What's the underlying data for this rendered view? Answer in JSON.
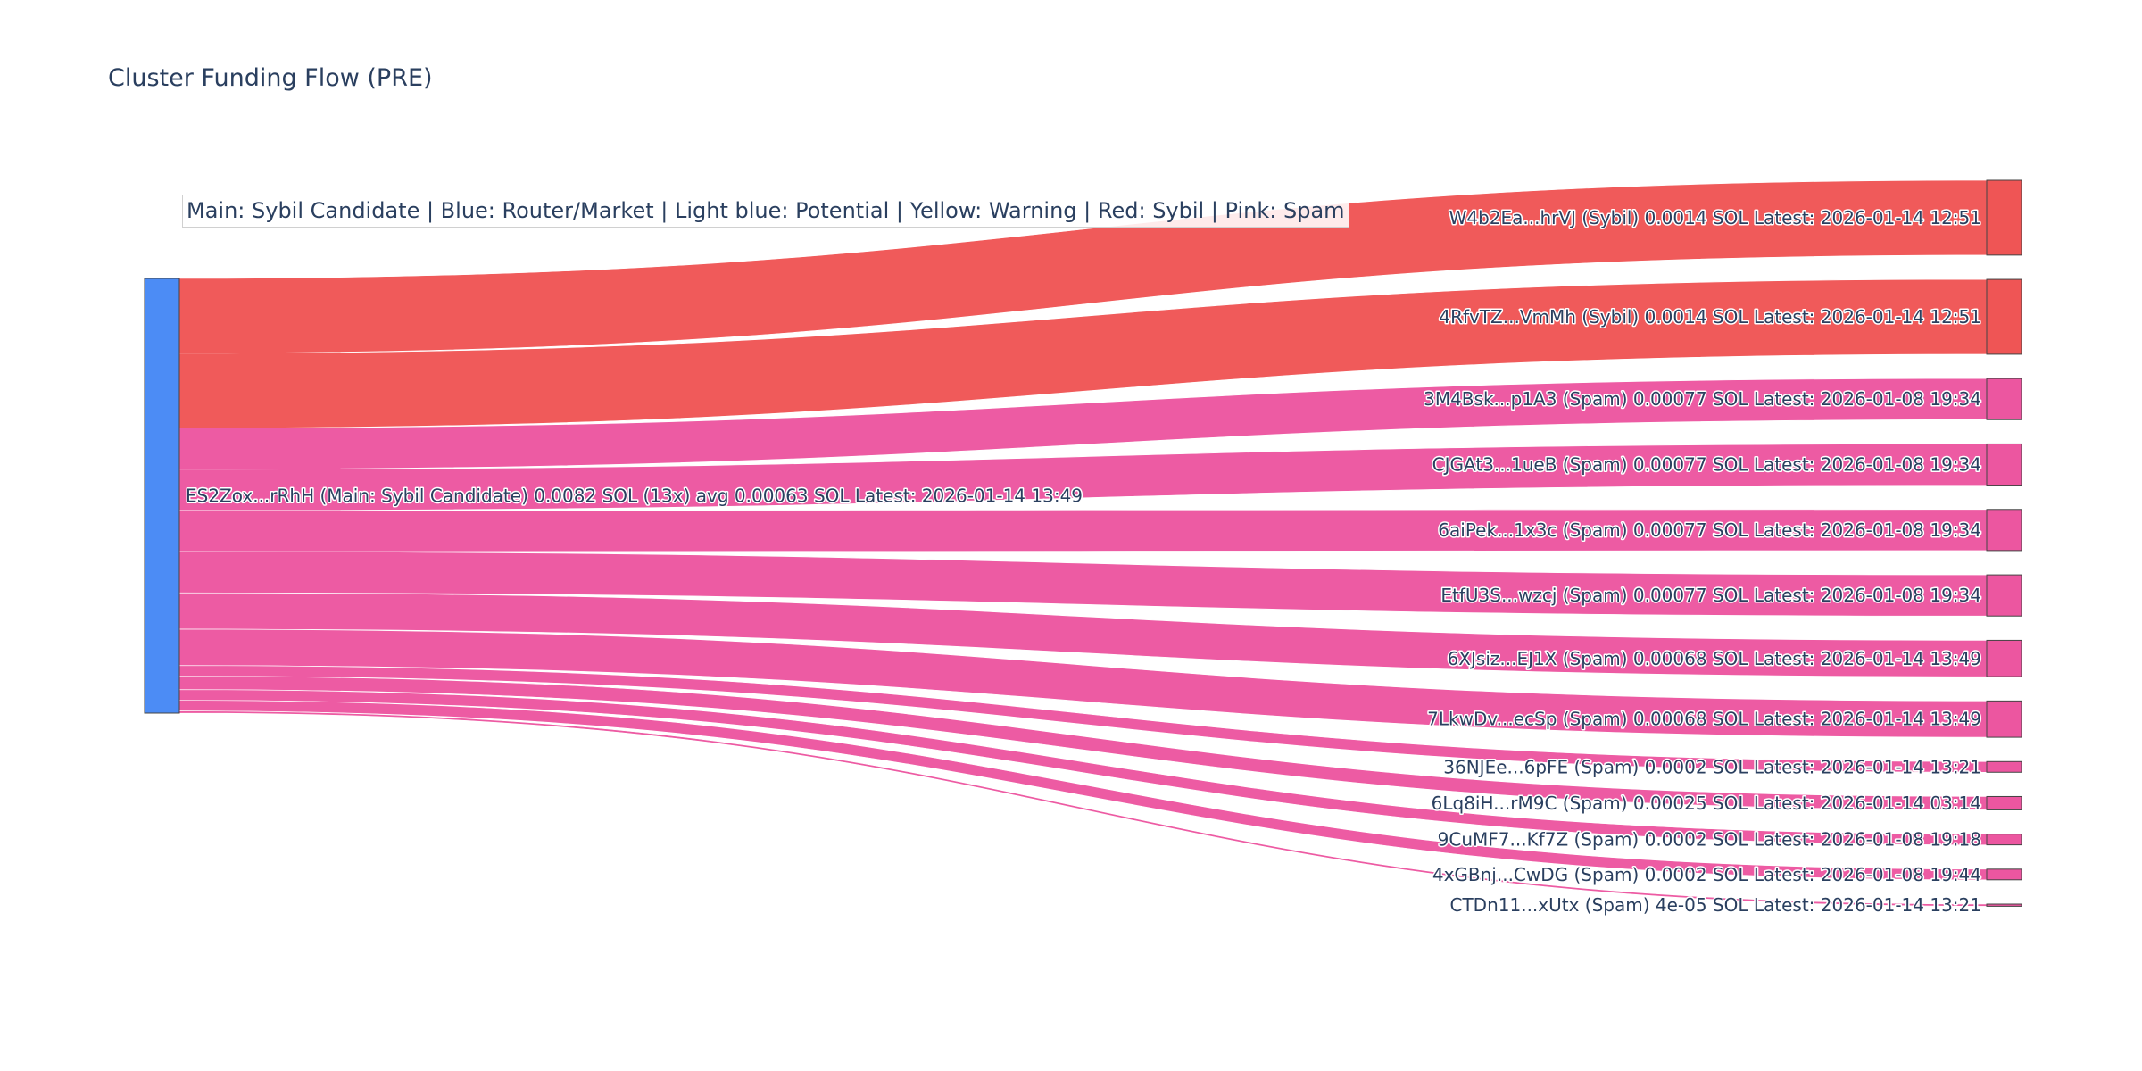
{
  "title": "Cluster Funding Flow (PRE)",
  "legend": "Main: Sybil Candidate  |  Blue: Router/Market | Light blue: Potential | Yellow: Warning | Red: Sybil | Pink: Spam",
  "colors": {
    "main": "#4c8cf5",
    "sybil": "#ef5555",
    "spam": "#ec56a0",
    "node_border": "#444444"
  },
  "chart_data": {
    "type": "sankey",
    "source": {
      "label": "ES2Zox...rRhH (Main: Sybil Candidate) 0.0082 SOL (13x) avg 0.00063 SOL Latest: 2026-01-14 13:49",
      "category": "main"
    },
    "targets": [
      {
        "label": "W4b2Ea...hrVJ (Sybil) 0.0014 SOL Latest: 2026-01-14 12:51",
        "value": 0.0014,
        "category": "sybil"
      },
      {
        "label": "4RfvTZ...VmMh (Sybil) 0.0014 SOL Latest: 2026-01-14 12:51",
        "value": 0.0014,
        "category": "sybil"
      },
      {
        "label": "3M4Bsk...p1A3 (Spam) 0.00077 SOL Latest: 2026-01-08 19:34",
        "value": 0.00077,
        "category": "spam"
      },
      {
        "label": "CJGAt3...1ueB (Spam) 0.00077 SOL Latest: 2026-01-08 19:34",
        "value": 0.00077,
        "category": "spam"
      },
      {
        "label": "6aiPek...1x3c (Spam) 0.00077 SOL Latest: 2026-01-08 19:34",
        "value": 0.00077,
        "category": "spam"
      },
      {
        "label": "EtfU3S...wzcj (Spam) 0.00077 SOL Latest: 2026-01-08 19:34",
        "value": 0.00077,
        "category": "spam"
      },
      {
        "label": "6XJsiz...EJ1X (Spam) 0.00068 SOL Latest: 2026-01-14 13:49",
        "value": 0.00068,
        "category": "spam"
      },
      {
        "label": "7LkwDv...ecSp (Spam) 0.00068 SOL Latest: 2026-01-14 13:49",
        "value": 0.00068,
        "category": "spam"
      },
      {
        "label": "36NJEe...6pFE (Spam) 0.0002 SOL Latest: 2026-01-14 13:21",
        "value": 0.0002,
        "category": "spam"
      },
      {
        "label": "6Lq8iH...rM9C (Spam) 0.00025 SOL Latest: 2026-01-14 03:14",
        "value": 0.00025,
        "category": "spam"
      },
      {
        "label": "9CuMF7...Kf7Z (Spam) 0.0002 SOL Latest: 2026-01-08 19:18",
        "value": 0.0002,
        "category": "spam"
      },
      {
        "label": "4xGBnj...CwDG (Spam) 0.0002 SOL Latest: 2026-01-08 19:44",
        "value": 0.0002,
        "category": "spam"
      },
      {
        "label": "CTDn11...xUtx (Spam) 4e-05 SOL Latest: 2026-01-14 13:21",
        "value": 4e-05,
        "category": "spam"
      }
    ]
  }
}
